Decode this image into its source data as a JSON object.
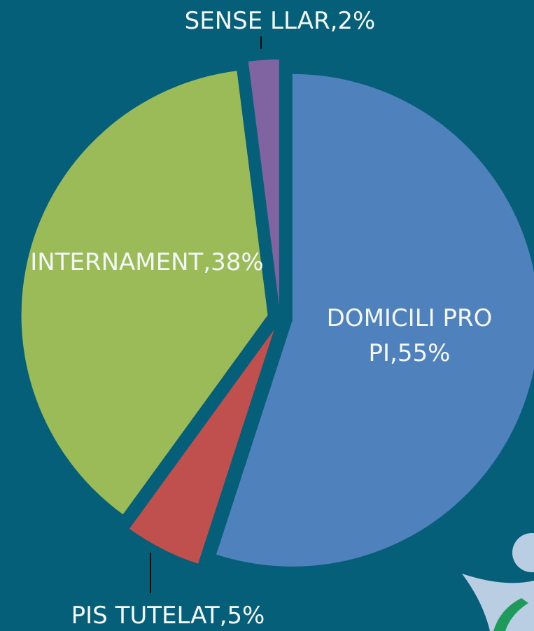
{
  "chart_data": {
    "type": "pie",
    "values": [
      55,
      5,
      38,
      2
    ],
    "value_labels": [
      "DOMICILI PROPI,55%",
      "PIS TUTELAT,5%",
      "INTERNAMENT,38%",
      "SENSE LLAR,2%"
    ],
    "colors": [
      "#4f81bd",
      "#c0504d",
      "#9bbb59",
      "#8064a2"
    ]
  }
}
